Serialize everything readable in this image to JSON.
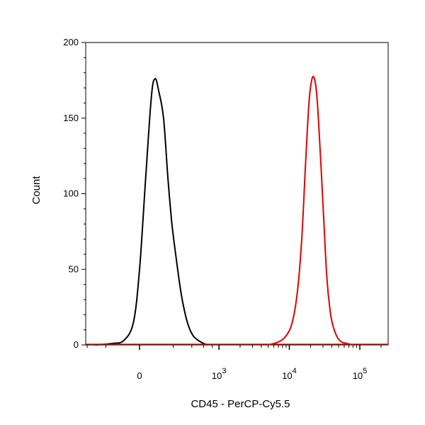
{
  "chart_data": {
    "type": "line",
    "xlabel": "CD45 - PerCP-Cy5.5",
    "ylabel": "Count",
    "ylim": [
      0,
      200
    ],
    "y_ticks": [
      0,
      50,
      100,
      150,
      200
    ],
    "x_scale": "biexponential",
    "x_ticks": [
      {
        "value": 0,
        "label": "0"
      },
      {
        "value": 1000,
        "label": "10",
        "exp": "3"
      },
      {
        "value": 10000,
        "label": "10",
        "exp": "4"
      },
      {
        "value": 100000,
        "label": "10",
        "exp": "5"
      }
    ],
    "grid": false,
    "legend": "none",
    "series": [
      {
        "color": "#000000",
        "points": [
          [
            -300,
            0
          ],
          [
            -150,
            1
          ],
          [
            -80,
            3
          ],
          [
            -30,
            15
          ],
          [
            0,
            50
          ],
          [
            30,
            110
          ],
          [
            60,
            165
          ],
          [
            80,
            176
          ],
          [
            100,
            168
          ],
          [
            130,
            150
          ],
          [
            160,
            110
          ],
          [
            190,
            80
          ],
          [
            230,
            55
          ],
          [
            270,
            35
          ],
          [
            310,
            22
          ],
          [
            360,
            12
          ],
          [
            420,
            6
          ],
          [
            500,
            3
          ],
          [
            600,
            1
          ],
          [
            700,
            0
          ]
        ]
      },
      {
        "color": "#e00000",
        "points": [
          [
            5000,
            0
          ],
          [
            7000,
            2
          ],
          [
            9000,
            6
          ],
          [
            11000,
            15
          ],
          [
            13000,
            35
          ],
          [
            15000,
            70
          ],
          [
            17000,
            120
          ],
          [
            19000,
            160
          ],
          [
            21000,
            176
          ],
          [
            23000,
            175
          ],
          [
            25000,
            160
          ],
          [
            28000,
            120
          ],
          [
            31000,
            80
          ],
          [
            34000,
            45
          ],
          [
            38000,
            22
          ],
          [
            42000,
            12
          ],
          [
            48000,
            5
          ],
          [
            55000,
            2
          ],
          [
            65000,
            1
          ],
          [
            80000,
            0
          ]
        ]
      }
    ]
  }
}
